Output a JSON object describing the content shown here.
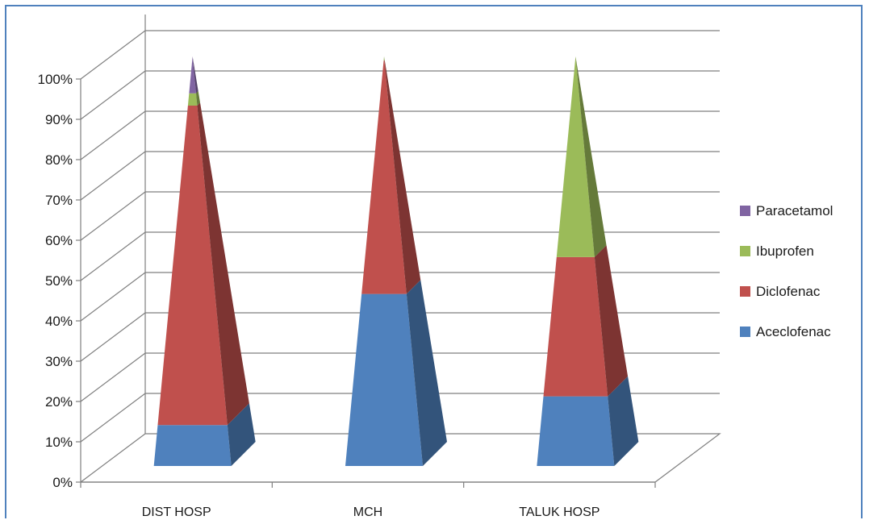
{
  "chart_data": {
    "type": "bar",
    "subtype": "stacked-percent-3d-pyramid",
    "categories": [
      "DIST HOSP",
      "MCH",
      "TALUK HOSP"
    ],
    "series": [
      {
        "name": "Aceclofenac",
        "values": [
          10,
          42,
          17
        ],
        "color": "#4f81bd"
      },
      {
        "name": "Diclofenac",
        "values": [
          78,
          57,
          34
        ],
        "color": "#c0504d"
      },
      {
        "name": "Ibuprofen",
        "values": [
          3,
          1,
          49
        ],
        "color": "#9bbb59"
      },
      {
        "name": "Paracetamol",
        "values": [
          9,
          0,
          0
        ],
        "color": "#8064a2"
      }
    ],
    "y_ticks": [
      "0%",
      "10%",
      "20%",
      "30%",
      "40%",
      "50%",
      "60%",
      "70%",
      "80%",
      "90%",
      "100%"
    ],
    "ylim": [
      0,
      100
    ],
    "grid": true,
    "legend_position": "right",
    "legend_order": [
      "Paracetamol",
      "Ibuprofen",
      "Diclofenac",
      "Aceclofenac"
    ]
  },
  "colors": {
    "frame_border": "#4f81bd",
    "gridline": "#7f7f7f"
  }
}
